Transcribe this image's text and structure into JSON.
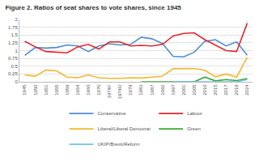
{
  "chart_data": {
    "type": "line",
    "title": "Figure 2. Ratios of seat shares to vote shares, since 1945",
    "categories": [
      "1945",
      "1950",
      "1951",
      "1955",
      "1959",
      "1964",
      "1966",
      "1970",
      "1974F",
      "1974O",
      "1979",
      "1983",
      "1987",
      "1992",
      "1997",
      "2001",
      "2005",
      "2010",
      "2015",
      "2017",
      "2019",
      "2024"
    ],
    "series": [
      {
        "name": "Conservative",
        "color": "#4a8fd6",
        "values": [
          0.85,
          1.1,
          1.08,
          1.1,
          1.18,
          1.15,
          0.97,
          1.15,
          1.22,
          1.18,
          1.2,
          1.43,
          1.38,
          1.23,
          0.82,
          0.8,
          0.95,
          1.3,
          1.35,
          1.15,
          1.28,
          0.85
        ]
      },
      {
        "name": "Labour",
        "color": "#e4262b",
        "values": [
          1.3,
          1.12,
          0.97,
          0.95,
          0.93,
          1.12,
          1.2,
          1.05,
          1.28,
          1.28,
          1.15,
          1.17,
          1.15,
          1.2,
          1.47,
          1.55,
          1.57,
          1.35,
          1.17,
          1.0,
          0.97,
          1.88
        ]
      },
      {
        "name": "Liberal/Liberal Democrat",
        "color": "#f4b72a",
        "values": [
          0.22,
          0.18,
          0.38,
          0.35,
          0.15,
          0.13,
          0.22,
          0.13,
          0.11,
          0.11,
          0.13,
          0.12,
          0.15,
          0.18,
          0.42,
          0.43,
          0.43,
          0.37,
          0.16,
          0.25,
          0.15,
          0.78
        ]
      },
      {
        "name": "Green",
        "color": "#3aa935",
        "values": [
          null,
          null,
          null,
          null,
          null,
          null,
          null,
          null,
          null,
          null,
          null,
          0,
          0,
          0,
          0,
          0,
          0,
          0.15,
          0.03,
          0.07,
          0.04,
          0.1
        ]
      },
      {
        "name": "UKIP/Brexit/Reform",
        "color": "#6cc5e9",
        "values": [
          null,
          null,
          null,
          null,
          null,
          null,
          null,
          null,
          null,
          null,
          null,
          null,
          null,
          null,
          0,
          0,
          0,
          0,
          0.01,
          0,
          0,
          0.07
        ]
      }
    ],
    "ylim": [
      0,
      2
    ],
    "yticks": [
      0,
      0.25,
      0.5,
      0.75,
      1,
      1.25,
      1.5,
      1.75,
      2
    ],
    "grid": true,
    "legend": "bottom"
  }
}
